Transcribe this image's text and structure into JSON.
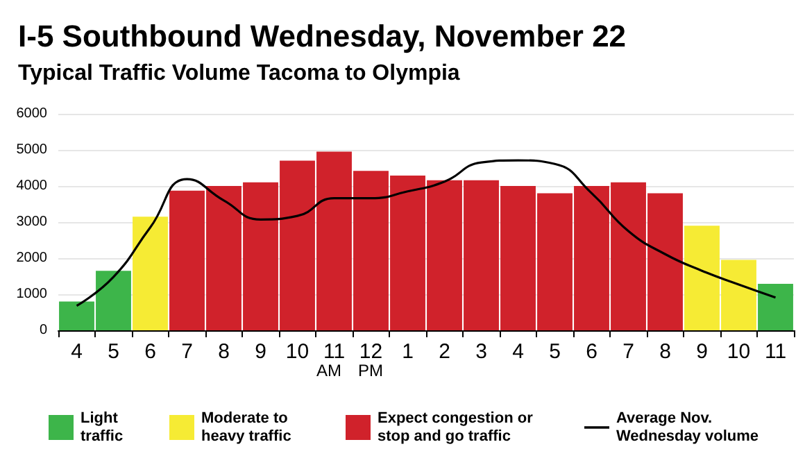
{
  "chart_data": {
    "type": "bar",
    "title": "I-5 Southbound Wednesday, November 22",
    "subtitle": "Typical Traffic Volume Tacoma to Olympia",
    "categories": [
      "4",
      "5",
      "6",
      "7",
      "8",
      "9",
      "10",
      "11",
      "12",
      "1",
      "2",
      "3",
      "4",
      "5",
      "6",
      "7",
      "8",
      "9",
      "10",
      "11"
    ],
    "series": [
      {
        "name": "Light traffic",
        "color": "#3db54a",
        "values": [
          800,
          1650,
          null,
          null,
          null,
          null,
          null,
          null,
          null,
          null,
          null,
          null,
          null,
          null,
          null,
          null,
          null,
          null,
          null,
          1290
        ]
      },
      {
        "name": "Moderate to heavy traffic",
        "color": "#f6eb34",
        "values": [
          null,
          null,
          3150,
          null,
          null,
          null,
          null,
          null,
          null,
          null,
          null,
          null,
          null,
          null,
          null,
          null,
          null,
          2900,
          1950,
          null
        ]
      },
      {
        "name": "Expect congestion or stop and go traffic",
        "color": "#d0222b",
        "values": [
          null,
          null,
          null,
          3870,
          4000,
          4100,
          4700,
          4950,
          4420,
          4290,
          4160,
          4160,
          4000,
          3800,
          4000,
          4100,
          3800,
          null,
          null,
          null
        ]
      },
      {
        "name": "Average Nov. Wednesday volume",
        "type": "line",
        "color": "#000000",
        "marker": "none",
        "values": [
          680,
          1480,
          2850,
          4190,
          3600,
          3070,
          3170,
          3660,
          3660,
          3850,
          4120,
          4650,
          4710,
          4610,
          3800,
          2750,
          2110,
          1650,
          1270,
          910
        ]
      }
    ],
    "ylim": [
      0,
      6000
    ],
    "yticks": [
      0,
      1000,
      2000,
      3000,
      4000,
      5000,
      6000
    ],
    "grid": "y",
    "legend": "bottom",
    "annotations": [
      "AM",
      "PM"
    ]
  }
}
